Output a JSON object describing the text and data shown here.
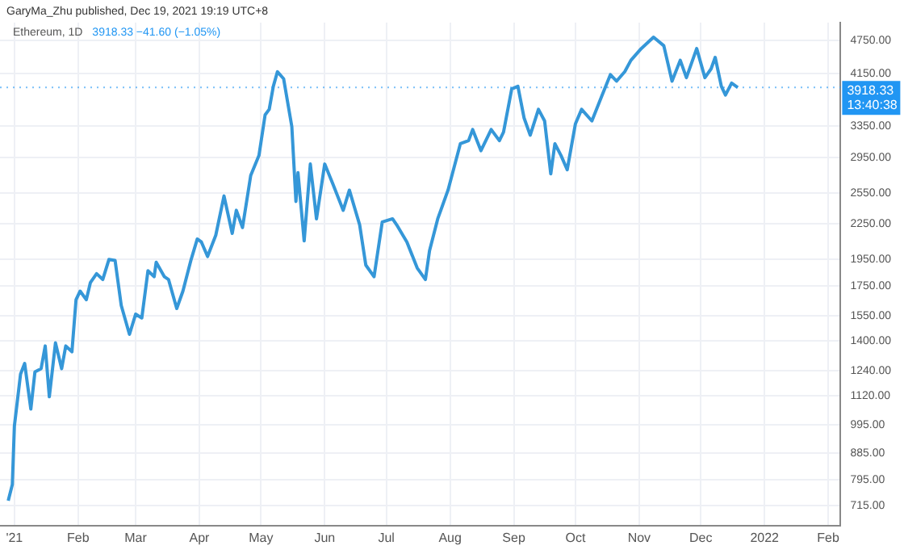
{
  "chart_data": {
    "type": "line",
    "log": "y",
    "grid": true,
    "legend": false,
    "marker": "none",
    "line_style": "solid",
    "annotations": [
      "GaryMa_Zhu published, Dec 19, 2021 19:19 UTC+8",
      "Ethereum, 1D",
      "3918.33 −41.60 (−1.05%)",
      "13:40:38"
    ],
    "xlim": [
      "2020-12-25",
      "2022-02-07"
    ],
    "xticks": [
      {
        "value": "2021-01-01",
        "label": "'21"
      },
      {
        "value": "2021-02-01",
        "label": "Feb"
      },
      {
        "value": "2021-03-01",
        "label": "Mar"
      },
      {
        "value": "2021-04-01",
        "label": "Apr"
      },
      {
        "value": "2021-05-01",
        "label": "May"
      },
      {
        "value": "2021-06-01",
        "label": "Jun"
      },
      {
        "value": "2021-07-01",
        "label": "Jul"
      },
      {
        "value": "2021-08-01",
        "label": "Aug"
      },
      {
        "value": "2021-09-01",
        "label": "Sep"
      },
      {
        "value": "2021-10-01",
        "label": "Oct"
      },
      {
        "value": "2021-11-01",
        "label": "Nov"
      },
      {
        "value": "2021-12-01",
        "label": "Dec"
      },
      {
        "value": "2022-01-01",
        "label": "2022"
      },
      {
        "value": "2022-02-01",
        "label": "Feb"
      }
    ],
    "ylim": [
      660,
      5100
    ],
    "yticks": [
      {
        "value": 715,
        "label": "715.00"
      },
      {
        "value": 795,
        "label": "795.00"
      },
      {
        "value": 885,
        "label": "885.00"
      },
      {
        "value": 995,
        "label": "995.00"
      },
      {
        "value": 1120,
        "label": "1120.00"
      },
      {
        "value": 1240,
        "label": "1240.00"
      },
      {
        "value": 1400,
        "label": "1400.00"
      },
      {
        "value": 1550,
        "label": "1550.00"
      },
      {
        "value": 1750,
        "label": "1750.00"
      },
      {
        "value": 1950,
        "label": "1950.00"
      },
      {
        "value": 2250,
        "label": "2250.00"
      },
      {
        "value": 2550,
        "label": "2550.00"
      },
      {
        "value": 2950,
        "label": "2950.00"
      },
      {
        "value": 3350,
        "label": "3350.00"
      },
      {
        "value": 4150,
        "label": "4150.00"
      },
      {
        "value": 4750,
        "label": "4750.00"
      }
    ],
    "ref_lines": [
      {
        "axis": "y",
        "value": 3918.33,
        "label": "3918.33",
        "color": "#2196f3",
        "line_style": "dotted"
      }
    ],
    "series": [
      {
        "color": "#3597d8",
        "x": [
          "2020-12-29",
          "2020-12-31",
          "2021-01-01",
          "2021-01-04",
          "2021-01-06",
          "2021-01-09",
          "2021-01-11",
          "2021-01-14",
          "2021-01-16",
          "2021-01-18",
          "2021-01-21",
          "2021-01-24",
          "2021-01-26",
          "2021-01-29",
          "2021-01-31",
          "2021-02-02",
          "2021-02-05",
          "2021-02-07",
          "2021-02-10",
          "2021-02-13",
          "2021-02-16",
          "2021-02-19",
          "2021-02-22",
          "2021-02-26",
          "2021-03-01",
          "2021-03-04",
          "2021-03-07",
          "2021-03-10",
          "2021-03-11",
          "2021-03-15",
          "2021-03-17",
          "2021-03-21",
          "2021-03-24",
          "2021-03-28",
          "2021-03-31",
          "2021-04-02",
          "2021-04-05",
          "2021-04-09",
          "2021-04-13",
          "2021-04-17",
          "2021-04-19",
          "2021-04-22",
          "2021-04-26",
          "2021-04-30",
          "2021-05-03",
          "2021-05-05",
          "2021-05-07",
          "2021-05-09",
          "2021-05-12",
          "2021-05-16",
          "2021-05-18",
          "2021-05-19",
          "2021-05-22",
          "2021-05-25",
          "2021-05-28",
          "2021-06-01",
          "2021-06-05",
          "2021-06-10",
          "2021-06-13",
          "2021-06-18",
          "2021-06-21",
          "2021-06-25",
          "2021-06-29",
          "2021-07-04",
          "2021-07-06",
          "2021-07-11",
          "2021-07-16",
          "2021-07-20",
          "2021-07-22",
          "2021-07-26",
          "2021-07-31",
          "2021-08-06",
          "2021-08-10",
          "2021-08-12",
          "2021-08-16",
          "2021-08-21",
          "2021-08-25",
          "2021-08-27",
          "2021-08-31",
          "2021-09-03",
          "2021-09-06",
          "2021-09-09",
          "2021-09-13",
          "2021-09-16",
          "2021-09-19",
          "2021-09-21",
          "2021-09-24",
          "2021-09-27",
          "2021-10-01",
          "2021-10-04",
          "2021-10-09",
          "2021-10-14",
          "2021-10-18",
          "2021-10-21",
          "2021-10-25",
          "2021-10-28",
          "2021-11-02",
          "2021-11-08",
          "2021-11-13",
          "2021-11-17",
          "2021-11-21",
          "2021-11-24",
          "2021-11-29",
          "2021-12-03",
          "2021-12-06",
          "2021-12-08",
          "2021-12-11",
          "2021-12-13",
          "2021-12-16",
          "2021-12-19"
        ],
        "values": [
          730,
          780,
          989,
          1222,
          1276,
          1060,
          1233,
          1249,
          1370,
          1114,
          1387,
          1249,
          1370,
          1338,
          1653,
          1712,
          1653,
          1773,
          1838,
          1795,
          1947,
          1940,
          1615,
          1436,
          1559,
          1535,
          1860,
          1815,
          1925,
          1815,
          1795,
          1595,
          1712,
          1947,
          2116,
          2090,
          1971,
          2149,
          2521,
          2165,
          2378,
          2217,
          2740,
          2971,
          3505,
          3585,
          3937,
          4177,
          4060,
          3342,
          2465,
          2771,
          2100,
          2870,
          2297,
          2870,
          2644,
          2378,
          2581,
          2242,
          1903,
          1815,
          2268,
          2297,
          2242,
          2090,
          1881,
          1795,
          2017,
          2297,
          2581,
          3117,
          3156,
          3302,
          3030,
          3302,
          3156,
          3267,
          3895,
          3937,
          3462,
          3227,
          3585,
          3420,
          2758,
          3117,
          2971,
          2804,
          3381,
          3585,
          3420,
          3799,
          4128,
          4020,
          4177,
          4376,
          4589,
          4806,
          4642,
          4020,
          4376,
          4078,
          4589,
          4078,
          4226,
          4428,
          3937,
          3799,
          3988,
          3918.33
        ]
      }
    ]
  }
}
